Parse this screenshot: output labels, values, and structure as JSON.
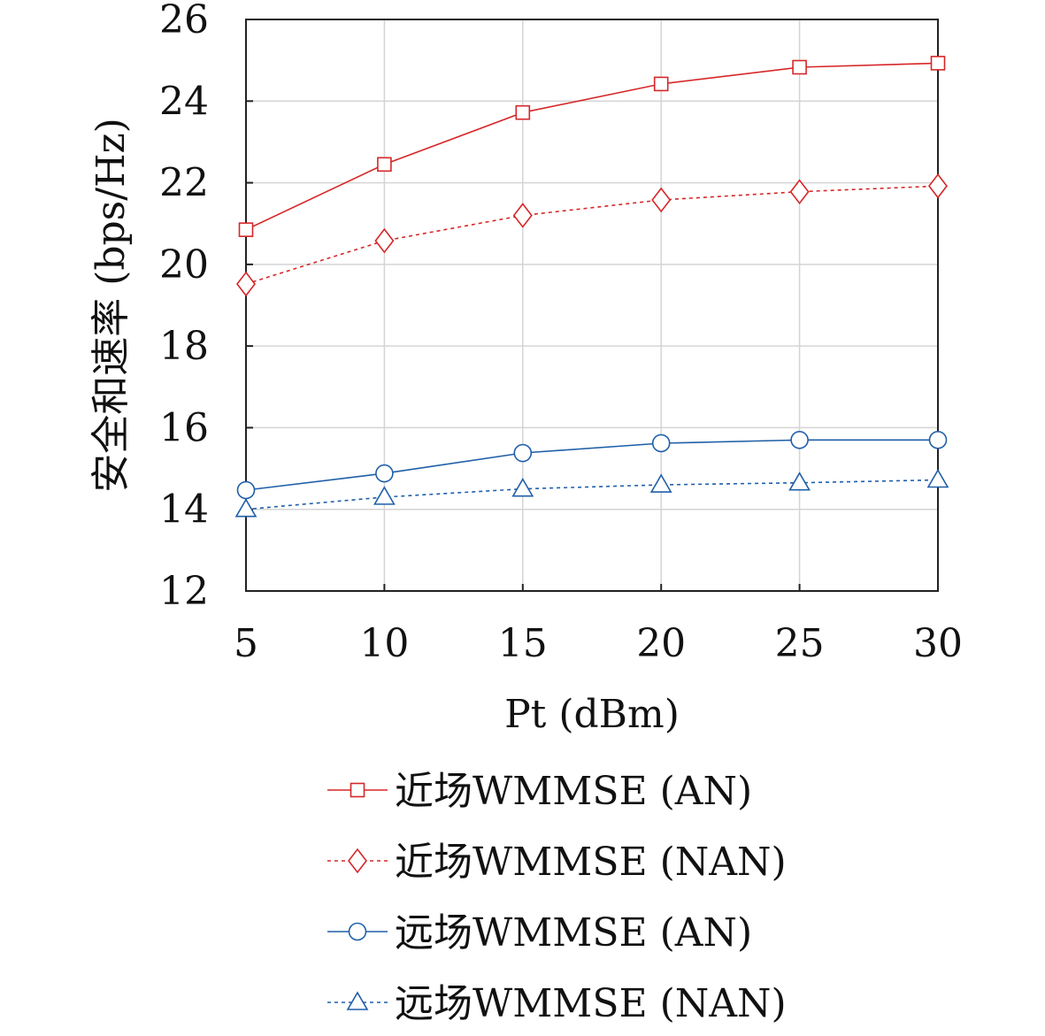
{
  "chart_data": {
    "type": "line",
    "title": "",
    "xlabel": "Pt (dBm)",
    "ylabel": "安全和速率 (bps/Hz)",
    "x": [
      5,
      10,
      15,
      20,
      25,
      30
    ],
    "xlim": [
      5,
      30
    ],
    "ylim": [
      12,
      26
    ],
    "xticks": [
      "5",
      "10",
      "15",
      "20",
      "25",
      "30"
    ],
    "yticks": [
      "12",
      "14",
      "16",
      "18",
      "20",
      "22",
      "24",
      "26"
    ],
    "grid": true,
    "legend_position": "below",
    "series": [
      {
        "name": "近场WMMSE (AN)",
        "values": [
          20.85,
          22.45,
          23.72,
          24.42,
          24.83,
          24.93
        ],
        "color": "#d62728",
        "marker": "square",
        "dash": "solid"
      },
      {
        "name": "近场WMMSE (NAN)",
        "values": [
          19.52,
          20.58,
          21.2,
          21.58,
          21.78,
          21.92
        ],
        "color": "#d62728",
        "marker": "diamond",
        "dash": "dashed"
      },
      {
        "name": "远场WMMSE (AN)",
        "values": [
          14.47,
          14.88,
          15.38,
          15.62,
          15.7,
          15.7
        ],
        "color": "#1f5fa8",
        "marker": "circle",
        "dash": "solid"
      },
      {
        "name": "远场WMMSE (NAN)",
        "values": [
          14.0,
          14.3,
          14.5,
          14.6,
          14.65,
          14.72
        ],
        "color": "#1f5fa8",
        "marker": "triangle",
        "dash": "dashed"
      }
    ]
  }
}
